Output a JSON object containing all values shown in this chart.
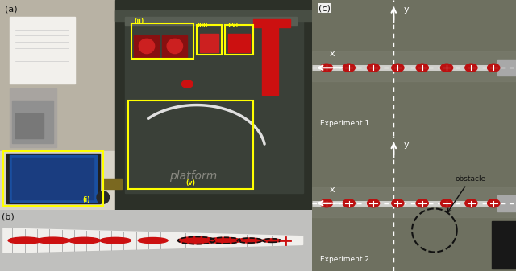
{
  "fig_width": 6.4,
  "fig_height": 3.37,
  "dpi": 100,
  "panel_a_label": "(a)",
  "panel_b_label": "(b)",
  "panel_c_label": "(c)",
  "platform_text": "platform",
  "experiment1_text": "Experiment 1",
  "experiment2_text": "Experiment 2",
  "obstacle_text": "obstacle",
  "labels_roman": [
    "(i)",
    "(ii)",
    "(iii)",
    "(iv)",
    "(v)"
  ],
  "yellow": "#ffff00",
  "white": "#ffffff",
  "bg_tank_color": "#7a7d6e",
  "arm_color": "#c8c8c8",
  "red_marker": "#cc1010",
  "text_white": "#ffffff",
  "text_black": "#111111",
  "obstacle_color": "#222222",
  "laptop_blue": "#1a4fa0",
  "lab_wall": "#c8c2b0",
  "tank_dark": "#404840",
  "table_color": "#dedad0"
}
